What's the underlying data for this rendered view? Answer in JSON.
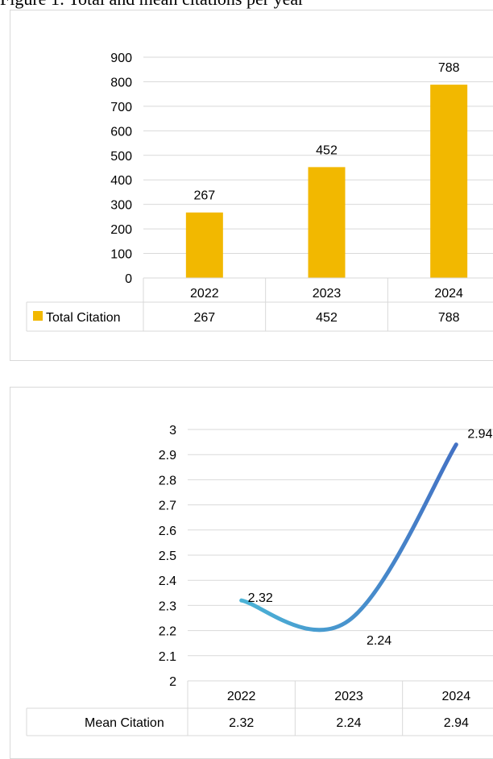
{
  "caption": "Figure 1: Total and mean citations per year",
  "chart_data": [
    {
      "type": "bar",
      "categories": [
        "2022",
        "2023",
        "2024"
      ],
      "series": [
        {
          "name": "Total Citation",
          "values": [
            267,
            452,
            788
          ]
        }
      ],
      "title": "",
      "xlabel": "",
      "ylabel": "",
      "ylim": [
        0,
        900
      ],
      "yticks": [
        "0",
        "100",
        "200",
        "300",
        "400",
        "500",
        "600",
        "700",
        "800",
        "900"
      ],
      "data_labels": [
        "267",
        "452",
        "788"
      ],
      "data_table": true,
      "grid": true,
      "legend": "data-table",
      "colors": {
        "bar": "#f2b800",
        "grid": "#d9d9d9"
      }
    },
    {
      "type": "line",
      "categories": [
        "2022",
        "2023",
        "2024"
      ],
      "series": [
        {
          "name": "Mean Citation",
          "values": [
            2.32,
            2.24,
            2.94
          ]
        }
      ],
      "title": "",
      "xlabel": "",
      "ylabel": "",
      "ylim": [
        2,
        3
      ],
      "yticks": [
        "2",
        "2.1",
        "2.2",
        "2.3",
        "2.4",
        "2.5",
        "2.6",
        "2.7",
        "2.8",
        "2.9",
        "3"
      ],
      "data_labels": [
        "2.32",
        "2.24",
        "2.94"
      ],
      "data_table": true,
      "grid": true,
      "smooth": true,
      "legend": "data-table",
      "colors": {
        "line_start": "#4bb3d6",
        "line_end": "#4472c4",
        "grid": "#d9d9d9"
      }
    }
  ]
}
